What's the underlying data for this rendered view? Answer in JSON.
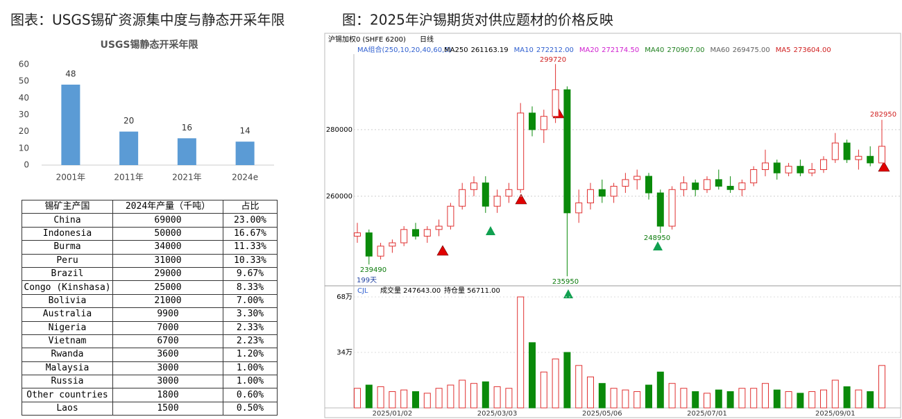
{
  "left_title": "图表：USGS锡矿资源集中度与静态开采年限",
  "right_title": "图：2025年沪锡期货对供应题材的价格反映",
  "chart_data": [
    {
      "type": "bar",
      "title": "USGS锡静态开采年限",
      "categories": [
        "2001年",
        "2011年",
        "2021年",
        "2024e"
      ],
      "values": [
        48,
        20,
        16,
        14
      ],
      "color": "#5b9bd5",
      "ylim": [
        0,
        60
      ],
      "yticks": [
        0,
        10,
        20,
        30,
        40,
        50,
        60
      ]
    },
    {
      "type": "candlestick",
      "title": "沪锡加权0 (SHFE 6200)",
      "period": "日线",
      "ma_label": "MA组合(250,10,20,40,60,5)",
      "indicators": [
        {
          "name": "MA250",
          "value": "261163.19",
          "color": "#000000"
        },
        {
          "name": "MA10",
          "value": "272212.00",
          "color": "#3060d0"
        },
        {
          "name": "MA20",
          "value": "272174.50",
          "color": "#d020d0"
        },
        {
          "name": "MA40",
          "value": "270907.00",
          "color": "#208020"
        },
        {
          "name": "MA60",
          "value": "269475.00",
          "color": "#606060"
        },
        {
          "name": "MA5",
          "value": "273604.00",
          "color": "#d02020"
        }
      ],
      "count_label": "199天",
      "categories": [
        null,
        null,
        null,
        "2025/01/02",
        null,
        null,
        null,
        null,
        null,
        null,
        null,
        null,
        "2025/03/03",
        null,
        null,
        null,
        null,
        null,
        null,
        null,
        null,
        "2025/05/06",
        null,
        null,
        null,
        null,
        null,
        null,
        null,
        null,
        "2025/07/01",
        null,
        null,
        null,
        null,
        null,
        null,
        null,
        null,
        null,
        null,
        "2025/09/01",
        null,
        null,
        null,
        null
      ],
      "open": [
        248000,
        249000,
        242000,
        245000,
        246000,
        250000,
        248000,
        250000,
        251000,
        257000,
        262000,
        264000,
        257000,
        260000,
        262000,
        285000,
        280000,
        284000,
        292000,
        255000,
        258000,
        262000,
        260000,
        263000,
        265000,
        266000,
        261000,
        251000,
        262000,
        264000,
        262000,
        265000,
        263000,
        262000,
        264000,
        268000,
        270000,
        267000,
        269000,
        267000,
        268000,
        271000,
        276000,
        271000,
        272000,
        270000
      ],
      "high": [
        252000,
        250000,
        246000,
        247000,
        251000,
        252000,
        251000,
        253000,
        258000,
        264000,
        266000,
        266000,
        262000,
        264000,
        288000,
        287000,
        286000,
        299720,
        293000,
        262000,
        264000,
        265000,
        264000,
        267000,
        268000,
        267000,
        262000,
        263000,
        266000,
        265000,
        266000,
        268000,
        266000,
        265000,
        269000,
        274000,
        271000,
        270000,
        271000,
        270000,
        272000,
        279000,
        277000,
        274000,
        275000,
        282950
      ],
      "low": [
        246000,
        239490,
        241000,
        243000,
        245000,
        247000,
        246000,
        248000,
        250000,
        256000,
        260000,
        255000,
        255000,
        258000,
        261000,
        278000,
        276000,
        282000,
        235950,
        252000,
        256000,
        258000,
        258000,
        261000,
        262000,
        259000,
        248950,
        250000,
        260000,
        260000,
        261000,
        262000,
        261000,
        260000,
        263000,
        266000,
        265000,
        266000,
        266000,
        266000,
        267000,
        270000,
        270000,
        268000,
        269000,
        270000
      ],
      "close": [
        249000,
        242000,
        245000,
        246000,
        250000,
        248000,
        250000,
        251000,
        257000,
        262000,
        264000,
        257000,
        260000,
        262000,
        285000,
        280000,
        284000,
        292000,
        255000,
        258000,
        262000,
        260000,
        263000,
        265000,
        266000,
        261000,
        251000,
        262000,
        264000,
        262000,
        265000,
        263000,
        262000,
        264000,
        268000,
        270000,
        267000,
        269000,
        267000,
        268000,
        271000,
        276000,
        271000,
        272000,
        270000,
        275000
      ],
      "up_color": "#e03030",
      "down_color": "#0a8a0a",
      "ylim": [
        233500,
        302700
      ],
      "yticks": [
        260000,
        280000
      ],
      "volume_name": "CJL",
      "volume_text": "成交量 247643.00",
      "oi_text": "持仓量 56711.00",
      "volume": [
        12,
        14,
        13,
        10,
        11,
        10,
        9,
        12,
        14,
        17,
        15,
        16,
        13,
        12,
        68,
        40,
        22,
        30,
        34,
        26,
        19,
        15,
        12,
        11,
        10,
        14,
        22,
        15,
        12,
        10,
        9,
        11,
        10,
        12,
        12,
        15,
        11,
        10,
        9,
        10,
        11,
        17,
        13,
        11,
        10,
        26
      ],
      "y2lim": [
        0,
        74.8
      ],
      "y2ticks": [
        {
          "value": 34,
          "label": "34万"
        },
        {
          "value": 68,
          "label": "68万"
        }
      ]
    }
  ],
  "table": {
    "header": [
      "锡矿主产国",
      "2024年产量（千吨）",
      "占比"
    ],
    "rows": [
      [
        "China",
        "69000",
        "23.00%"
      ],
      [
        "Indonesia",
        "50000",
        "16.67%"
      ],
      [
        "Burma",
        "34000",
        "11.33%"
      ],
      [
        "Peru",
        "31000",
        "10.33%"
      ],
      [
        "Brazil",
        "29000",
        "9.67%"
      ],
      [
        "Congo (Kinshasa)",
        "25000",
        "8.33%"
      ],
      [
        "Bolivia",
        "21000",
        "7.00%"
      ],
      [
        "Australia",
        "9900",
        "3.30%"
      ],
      [
        "Nigeria",
        "7000",
        "2.33%"
      ],
      [
        "Vietnam",
        "6700",
        "2.23%"
      ],
      [
        "Rwanda",
        "3600",
        "1.20%"
      ],
      [
        "Malaysia",
        "3000",
        "1.00%"
      ],
      [
        "Russia",
        "3000",
        "1.00%"
      ],
      [
        "Other countries",
        "1800",
        "0.60%"
      ],
      [
        "Laos",
        "1500",
        "0.50%"
      ]
    ]
  }
}
